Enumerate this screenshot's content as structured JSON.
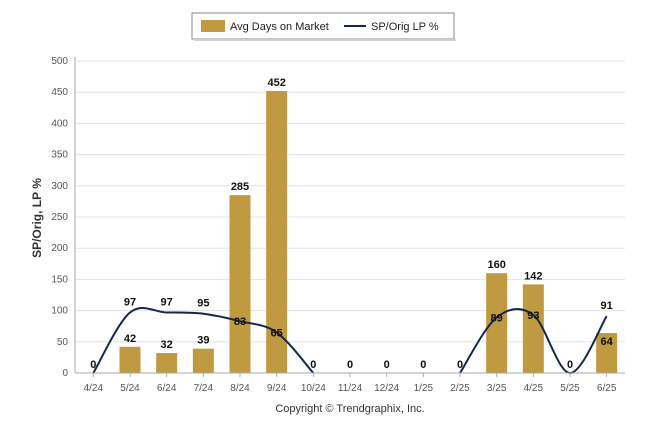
{
  "chart_data": {
    "type": "bar",
    "categories": [
      "4/24",
      "5/24",
      "6/24",
      "7/24",
      "8/24",
      "9/24",
      "10/24",
      "11/24",
      "12/24",
      "1/25",
      "2/25",
      "3/25",
      "4/25",
      "5/25",
      "6/25"
    ],
    "series": [
      {
        "name": "Avg Days on Market",
        "type": "bar",
        "color": "#bf9a40",
        "values": [
          0,
          42,
          32,
          39,
          285,
          452,
          0,
          0,
          0,
          0,
          0,
          160,
          142,
          0,
          64
        ]
      },
      {
        "name": "SP/Orig LP %",
        "type": "line",
        "color": "#13294b",
        "values": [
          0,
          97,
          97,
          95,
          83,
          65,
          0,
          null,
          null,
          null,
          0,
          89,
          93,
          0,
          91
        ]
      }
    ],
    "ylabel": "SP/Orig, LP %",
    "ylim": [
      0,
      500
    ],
    "yticks": [
      0,
      50,
      100,
      150,
      200,
      250,
      300,
      350,
      400,
      450,
      500
    ],
    "grid": true,
    "legend_position": "top-center",
    "footer": "Copyright © Trendgraphix, Inc."
  }
}
